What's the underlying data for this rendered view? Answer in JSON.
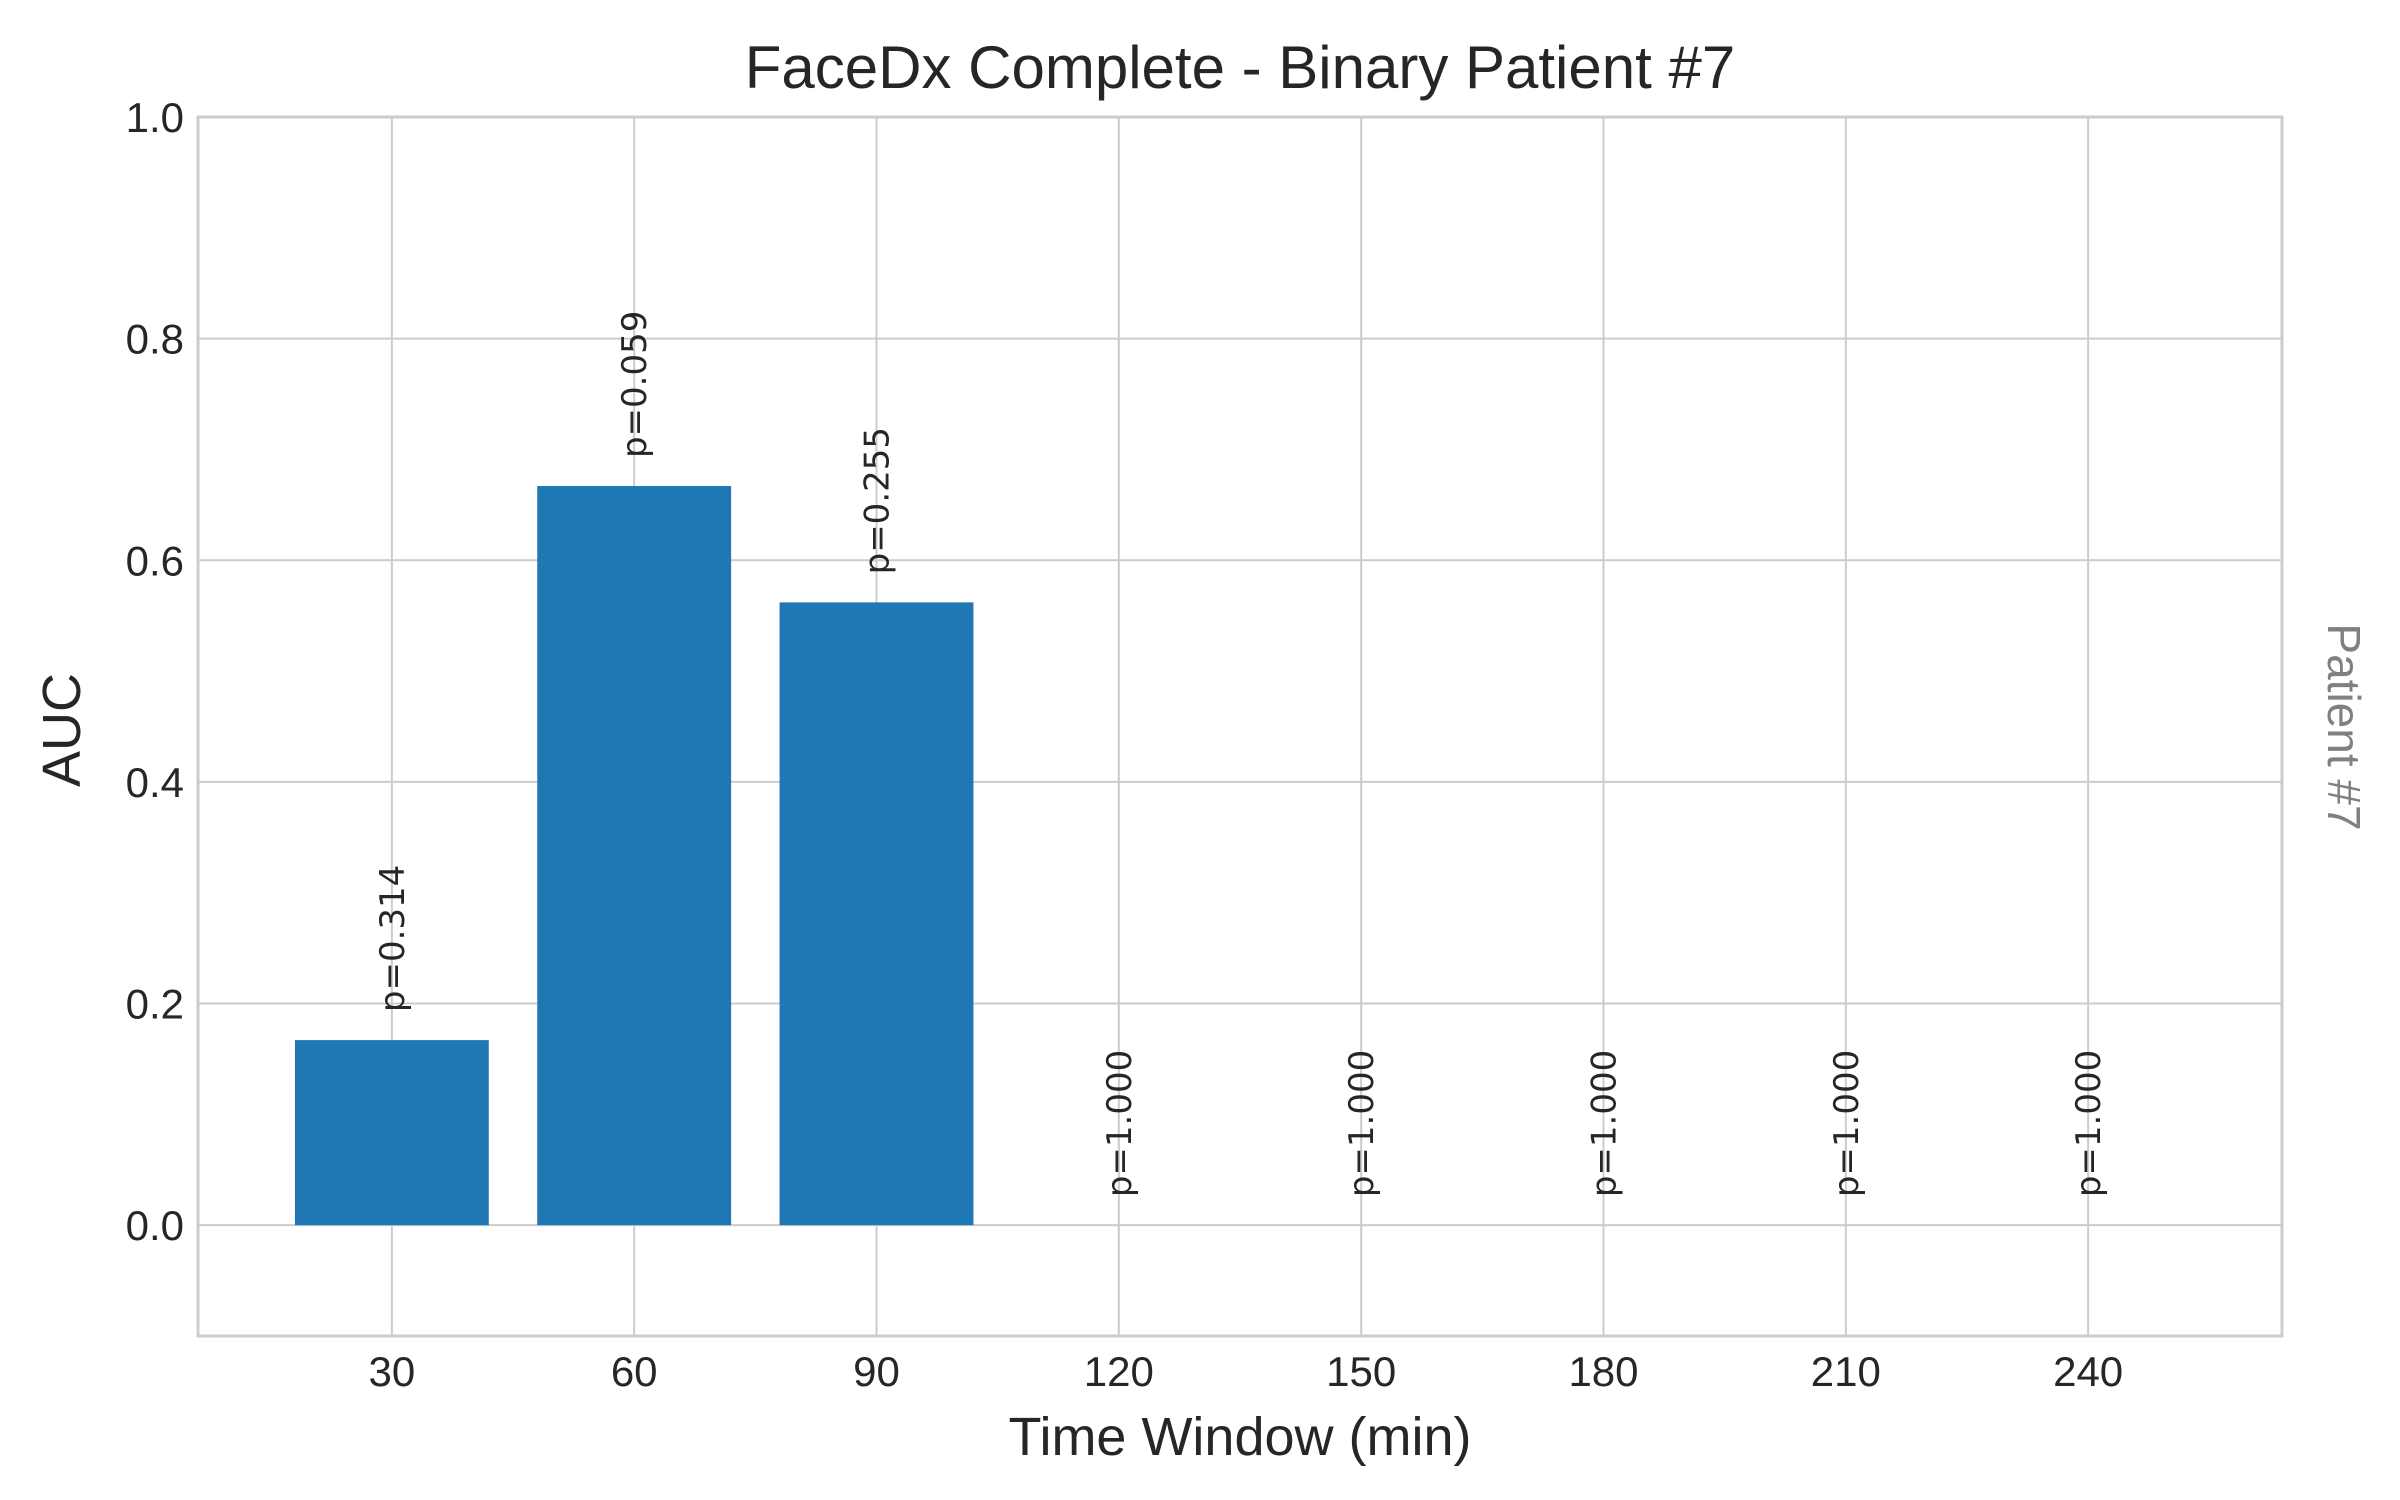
{
  "chart_data": {
    "type": "bar",
    "title": "FaceDx Complete - Binary Patient #7",
    "xlabel": "Time Window (min)",
    "ylabel": "AUC",
    "side_label": "Patient #7",
    "categories": [
      "30",
      "60",
      "90",
      "120",
      "150",
      "180",
      "210",
      "240"
    ],
    "x": [
      30,
      60,
      90,
      120,
      150,
      180,
      210,
      240
    ],
    "values": [
      0.167,
      0.667,
      0.562,
      0.0,
      0.0,
      0.0,
      0.0,
      0.0
    ],
    "annotations": [
      "p=0.314",
      "p=0.059",
      "p=0.255",
      "p=1.000",
      "p=1.000",
      "p=1.000",
      "p=1.000",
      "p=1.000"
    ],
    "ylim": [
      -0.1,
      1.0
    ],
    "xlim": [
      6,
      264
    ],
    "yticks": [
      0.0,
      0.2,
      0.4,
      0.6,
      0.8,
      1.0
    ],
    "ytick_labels": [
      "0.0",
      "0.2",
      "0.4",
      "0.6",
      "0.8",
      "1.0"
    ],
    "bar_width": 24,
    "grid": true,
    "bar_color": "#1f77b4"
  }
}
